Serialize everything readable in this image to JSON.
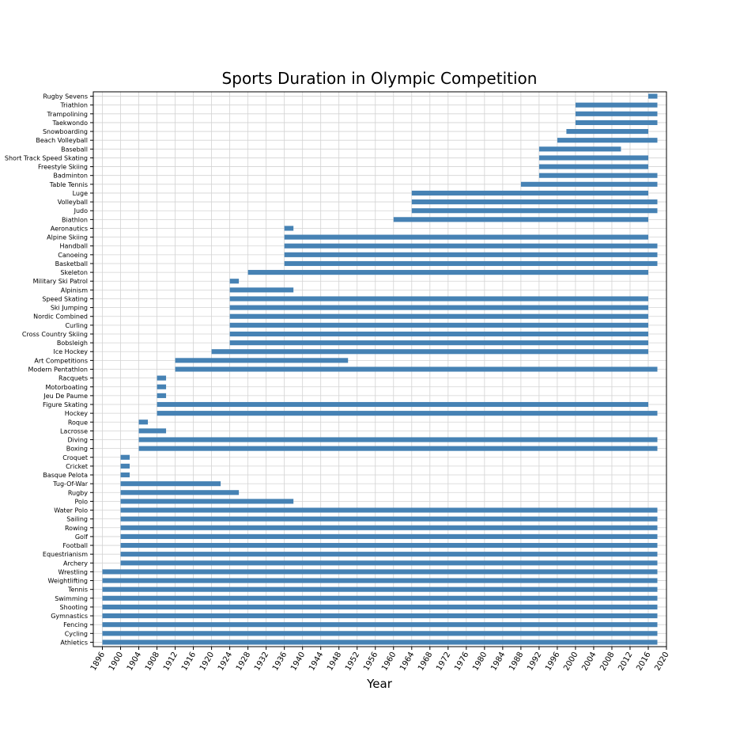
{
  "chart_data": {
    "type": "bar",
    "orientation": "horizontal",
    "title": "Sports Duration in Olympic Competition",
    "xlabel": "Year",
    "ylabel": "",
    "xlim": [
      1894,
      2020
    ],
    "xticks": [
      1896,
      1900,
      1904,
      1908,
      1912,
      1916,
      1920,
      1924,
      1928,
      1932,
      1936,
      1940,
      1944,
      1948,
      1952,
      1956,
      1960,
      1964,
      1968,
      1972,
      1976,
      1980,
      1984,
      1988,
      1992,
      1996,
      2000,
      2004,
      2008,
      2012,
      2016,
      2020
    ],
    "grid": true,
    "bar_color": "#4682b4",
    "grid_color": "#d3d3d3",
    "bars": [
      {
        "sport": "Athletics",
        "start": 1896,
        "end": 2018
      },
      {
        "sport": "Cycling",
        "start": 1896,
        "end": 2018
      },
      {
        "sport": "Fencing",
        "start": 1896,
        "end": 2018
      },
      {
        "sport": "Gymnastics",
        "start": 1896,
        "end": 2018
      },
      {
        "sport": "Shooting",
        "start": 1896,
        "end": 2018
      },
      {
        "sport": "Swimming",
        "start": 1896,
        "end": 2018
      },
      {
        "sport": "Tennis",
        "start": 1896,
        "end": 2018
      },
      {
        "sport": "Weightlifting",
        "start": 1896,
        "end": 2018
      },
      {
        "sport": "Wrestling",
        "start": 1896,
        "end": 2018
      },
      {
        "sport": "Archery",
        "start": 1900,
        "end": 2018
      },
      {
        "sport": "Equestrianism",
        "start": 1900,
        "end": 2018
      },
      {
        "sport": "Football",
        "start": 1900,
        "end": 2018
      },
      {
        "sport": "Golf",
        "start": 1900,
        "end": 2018
      },
      {
        "sport": "Rowing",
        "start": 1900,
        "end": 2018
      },
      {
        "sport": "Sailing",
        "start": 1900,
        "end": 2018
      },
      {
        "sport": "Water Polo",
        "start": 1900,
        "end": 2018
      },
      {
        "sport": "Polo",
        "start": 1900,
        "end": 1938
      },
      {
        "sport": "Rugby",
        "start": 1900,
        "end": 1926
      },
      {
        "sport": "Tug-Of-War",
        "start": 1900,
        "end": 1922
      },
      {
        "sport": "Basque Pelota",
        "start": 1900,
        "end": 1902
      },
      {
        "sport": "Cricket",
        "start": 1900,
        "end": 1902
      },
      {
        "sport": "Croquet",
        "start": 1900,
        "end": 1902
      },
      {
        "sport": "Boxing",
        "start": 1904,
        "end": 2018
      },
      {
        "sport": "Diving",
        "start": 1904,
        "end": 2018
      },
      {
        "sport": "Lacrosse",
        "start": 1904,
        "end": 1910
      },
      {
        "sport": "Roque",
        "start": 1904,
        "end": 1906
      },
      {
        "sport": "Hockey",
        "start": 1908,
        "end": 2018
      },
      {
        "sport": "Figure Skating",
        "start": 1908,
        "end": 2016
      },
      {
        "sport": "Jeu De Paume",
        "start": 1908,
        "end": 1910
      },
      {
        "sport": "Motorboating",
        "start": 1908,
        "end": 1910
      },
      {
        "sport": "Racquets",
        "start": 1908,
        "end": 1910
      },
      {
        "sport": "Modern Pentathlon",
        "start": 1912,
        "end": 2018
      },
      {
        "sport": "Art Competitions",
        "start": 1912,
        "end": 1950
      },
      {
        "sport": "Ice Hockey",
        "start": 1920,
        "end": 2016
      },
      {
        "sport": "Bobsleigh",
        "start": 1924,
        "end": 2016
      },
      {
        "sport": "Cross Country Skiing",
        "start": 1924,
        "end": 2016
      },
      {
        "sport": "Curling",
        "start": 1924,
        "end": 2016
      },
      {
        "sport": "Nordic Combined",
        "start": 1924,
        "end": 2016
      },
      {
        "sport": "Ski Jumping",
        "start": 1924,
        "end": 2016
      },
      {
        "sport": "Speed Skating",
        "start": 1924,
        "end": 2016
      },
      {
        "sport": "Alpinism",
        "start": 1924,
        "end": 1938
      },
      {
        "sport": "Military Ski Patrol",
        "start": 1924,
        "end": 1926
      },
      {
        "sport": "Skeleton",
        "start": 1928,
        "end": 2016
      },
      {
        "sport": "Basketball",
        "start": 1936,
        "end": 2018
      },
      {
        "sport": "Canoeing",
        "start": 1936,
        "end": 2018
      },
      {
        "sport": "Handball",
        "start": 1936,
        "end": 2018
      },
      {
        "sport": "Alpine Skiing",
        "start": 1936,
        "end": 2016
      },
      {
        "sport": "Aeronautics",
        "start": 1936,
        "end": 1938
      },
      {
        "sport": "Biathlon",
        "start": 1960,
        "end": 2016
      },
      {
        "sport": "Judo",
        "start": 1964,
        "end": 2018
      },
      {
        "sport": "Volleyball",
        "start": 1964,
        "end": 2018
      },
      {
        "sport": "Luge",
        "start": 1964,
        "end": 2016
      },
      {
        "sport": "Table Tennis",
        "start": 1988,
        "end": 2018
      },
      {
        "sport": "Badminton",
        "start": 1992,
        "end": 2018
      },
      {
        "sport": "Freestyle Skiing",
        "start": 1992,
        "end": 2016
      },
      {
        "sport": "Short Track Speed Skating",
        "start": 1992,
        "end": 2016
      },
      {
        "sport": "Baseball",
        "start": 1992,
        "end": 2010
      },
      {
        "sport": "Beach Volleyball",
        "start": 1996,
        "end": 2018
      },
      {
        "sport": "Snowboarding",
        "start": 1998,
        "end": 2016
      },
      {
        "sport": "Taekwondo",
        "start": 2000,
        "end": 2018
      },
      {
        "sport": "Trampolining",
        "start": 2000,
        "end": 2018
      },
      {
        "sport": "Triathlon",
        "start": 2000,
        "end": 2018
      },
      {
        "sport": "Rugby Sevens",
        "start": 2016,
        "end": 2018
      }
    ]
  }
}
